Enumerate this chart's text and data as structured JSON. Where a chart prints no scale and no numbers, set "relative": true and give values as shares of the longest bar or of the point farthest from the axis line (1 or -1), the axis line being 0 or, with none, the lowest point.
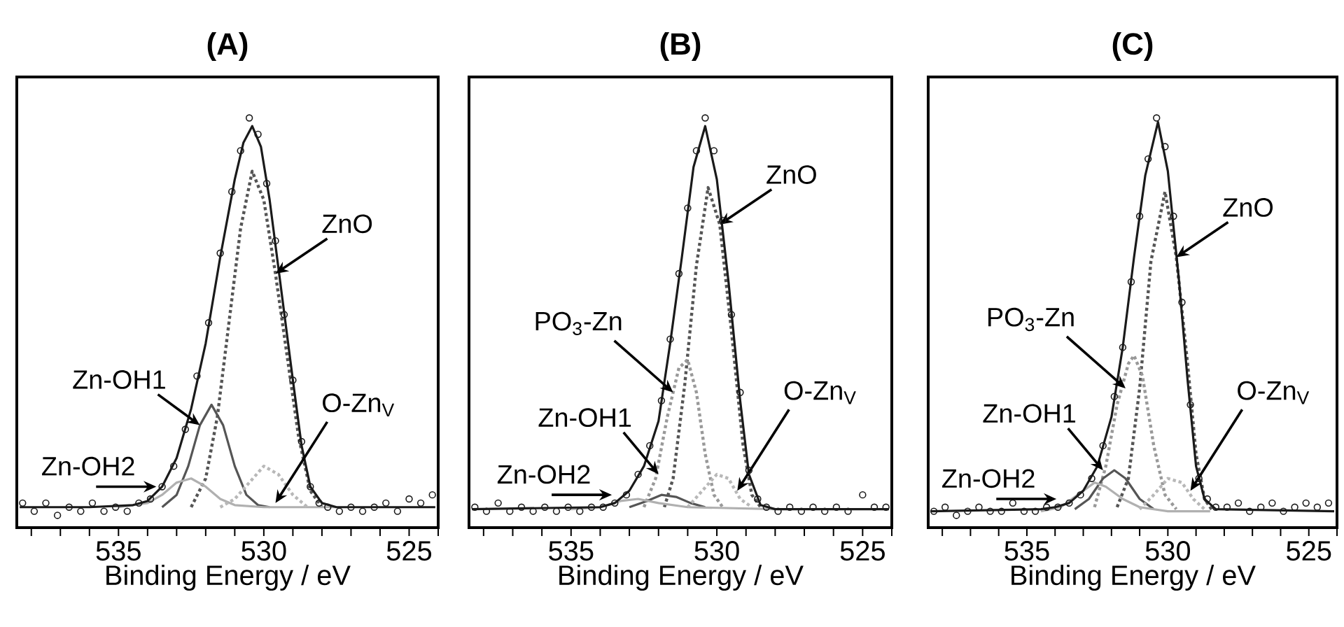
{
  "chart_data": [
    {
      "type": "line",
      "title": "(A)",
      "xlabel": "Binding Energy / eV",
      "relative": true,
      "xlim": [
        538.5,
        524
      ],
      "xticks": [
        {
          "value": 538,
          "label": null
        },
        {
          "value": 537,
          "label": null
        },
        {
          "value": 536,
          "label": null
        },
        535,
        {
          "value": 534,
          "label": null
        },
        {
          "value": 533,
          "label": null
        },
        {
          "value": 532,
          "label": null
        },
        {
          "value": 531,
          "label": null
        },
        530,
        {
          "value": 529,
          "label": null
        },
        {
          "value": 528,
          "label": null
        },
        {
          "value": 527,
          "label": null
        },
        {
          "value": 526,
          "label": null
        },
        525,
        {
          "value": 524,
          "label": null
        }
      ],
      "series": [
        {
          "type": "line",
          "color": "#555555",
          "line_style": "dotted",
          "x": [
            532.5,
            532,
            531.6,
            531.2,
            530.8,
            530.4,
            530,
            529.6,
            529.2,
            528.8,
            528.4,
            528
          ],
          "values": [
            0.05,
            0.12,
            0.27,
            0.5,
            0.73,
            0.87,
            0.8,
            0.62,
            0.42,
            0.22,
            0.09,
            0.05
          ]
        },
        {
          "type": "line",
          "color": "#555555",
          "line_style": "solid",
          "x": [
            533.5,
            533,
            532.6,
            532.2,
            531.8,
            531.4,
            531,
            530.6,
            530.2,
            529.8
          ],
          "values": [
            0.05,
            0.08,
            0.15,
            0.25,
            0.3,
            0.25,
            0.15,
            0.08,
            0.055,
            0.05
          ]
        },
        {
          "type": "line",
          "color": "#b0b0b0",
          "line_style": "solid",
          "x": [
            535,
            534,
            533.5,
            533,
            532.5,
            532,
            531.5,
            531,
            530,
            527.5
          ],
          "values": [
            0.05,
            0.06,
            0.08,
            0.11,
            0.12,
            0.1,
            0.07,
            0.055,
            0.05,
            0.05
          ]
        },
        {
          "type": "line",
          "color": "#b8b8b8",
          "line_style": "dotted",
          "x": [
            531.5,
            531,
            530.5,
            530,
            529.5,
            529,
            528.5
          ],
          "values": [
            0.05,
            0.07,
            0.11,
            0.15,
            0.13,
            0.08,
            0.05
          ]
        },
        {
          "type": "scatter",
          "color": "#1a1a1a",
          "marker": "circle",
          "x": [
            538.3,
            537.9,
            537.5,
            537.1,
            536.7,
            536.3,
            535.9,
            535.5,
            535.1,
            534.7,
            534.3,
            533.9,
            533.5,
            533.1,
            532.7,
            532.3,
            531.9,
            531.5,
            531.1,
            530.8,
            530.5,
            530.2,
            529.9,
            529.6,
            529.3,
            529,
            528.7,
            528.4,
            528.1,
            527.8,
            527.4,
            527,
            526.6,
            526.2,
            525.8,
            525.4,
            525,
            524.6,
            524.2
          ],
          "values": [
            0.06,
            0.04,
            0.06,
            0.03,
            0.05,
            0.04,
            0.06,
            0.04,
            0.05,
            0.04,
            0.06,
            0.07,
            0.1,
            0.15,
            0.24,
            0.37,
            0.5,
            0.67,
            0.82,
            0.92,
            1.0,
            0.96,
            0.84,
            0.7,
            0.52,
            0.36,
            0.21,
            0.1,
            0.06,
            0.05,
            0.04,
            0.05,
            0.04,
            0.05,
            0.06,
            0.04,
            0.07,
            0.06,
            0.08
          ]
        },
        {
          "type": "line",
          "color": "#1a1a1a",
          "line_style": "solid",
          "x": [
            538.4,
            536,
            534.5,
            534,
            533.5,
            533,
            532.5,
            532,
            531.5,
            531,
            530.7,
            530.4,
            530.1,
            529.8,
            529.4,
            529,
            528.7,
            528.4,
            528,
            527.5,
            524.1
          ],
          "values": [
            0.05,
            0.05,
            0.055,
            0.065,
            0.1,
            0.17,
            0.29,
            0.45,
            0.66,
            0.85,
            0.94,
            0.98,
            0.93,
            0.8,
            0.58,
            0.36,
            0.2,
            0.1,
            0.06,
            0.05,
            0.05
          ]
        }
      ],
      "annotations": [
        {
          "text": "ZnO",
          "x": 529.6,
          "y": 0.62
        },
        {
          "text": "Zn-OH1",
          "x": 532.2,
          "y": 0.25
        },
        {
          "text": "Zn-OH2",
          "x": 533.7,
          "y": 0.1
        },
        {
          "text": "O-Zn$_{V}$",
          "x": 529.6,
          "y": 0.06
        }
      ]
    },
    {
      "type": "line",
      "title": "(B)",
      "xlabel": "Binding Energy / eV",
      "relative": true,
      "xlim": [
        538.5,
        524
      ],
      "xticks": [
        {
          "value": 538,
          "label": null
        },
        {
          "value": 537,
          "label": null
        },
        {
          "value": 536,
          "label": null
        },
        535,
        {
          "value": 534,
          "label": null
        },
        {
          "value": 533,
          "label": null
        },
        {
          "value": 532,
          "label": null
        },
        {
          "value": 531,
          "label": null
        },
        530,
        {
          "value": 529,
          "label": null
        },
        {
          "value": 528,
          "label": null
        },
        {
          "value": 527,
          "label": null
        },
        {
          "value": 526,
          "label": null
        },
        525,
        {
          "value": 524,
          "label": null
        }
      ],
      "series": [
        {
          "type": "line",
          "color": "#555555",
          "line_style": "dotted",
          "x": [
            531.8,
            531.5,
            531.1,
            530.7,
            530.3,
            529.9,
            529.5,
            529.1,
            528.8,
            528.5
          ],
          "values": [
            0.05,
            0.12,
            0.35,
            0.64,
            0.83,
            0.74,
            0.48,
            0.2,
            0.08,
            0.05
          ]
        },
        {
          "type": "line",
          "color": "#999999",
          "line_style": "dotted",
          "x": [
            532.5,
            532.1,
            531.7,
            531.3,
            531,
            530.7,
            530.4,
            530.1,
            529.8
          ],
          "values": [
            0.05,
            0.12,
            0.27,
            0.39,
            0.41,
            0.33,
            0.18,
            0.08,
            0.05
          ]
        },
        {
          "type": "line",
          "color": "#555555",
          "line_style": "solid",
          "x": [
            533,
            532.4,
            531.9,
            531.4,
            530.9,
            530.4
          ],
          "values": [
            0.05,
            0.065,
            0.08,
            0.075,
            0.06,
            0.05
          ]
        },
        {
          "type": "line",
          "color": "#b0b0b0",
          "line_style": "solid",
          "x": [
            535,
            534,
            533.3,
            532.7,
            532,
            531,
            528
          ],
          "values": [
            0.045,
            0.05,
            0.065,
            0.07,
            0.06,
            0.05,
            0.045
          ]
        },
        {
          "type": "line",
          "color": "#b8b8b8",
          "line_style": "dotted",
          "x": [
            531,
            530.5,
            530,
            529.6,
            529.2,
            528.8
          ],
          "values": [
            0.05,
            0.09,
            0.13,
            0.12,
            0.07,
            0.05
          ]
        },
        {
          "type": "scatter",
          "color": "#1a1a1a",
          "marker": "circle",
          "x": [
            538.3,
            537.9,
            537.5,
            537.1,
            536.7,
            536.3,
            535.9,
            535.5,
            535.1,
            534.7,
            534.3,
            533.9,
            533.5,
            533.1,
            532.7,
            532.3,
            531.9,
            531.6,
            531.3,
            531,
            530.7,
            530.4,
            530.1,
            529.8,
            529.5,
            529.2,
            528.9,
            528.6,
            528.3,
            527.9,
            527.5,
            527.1,
            526.7,
            526.3,
            525.9,
            525.5,
            525,
            524.6,
            524.2
          ],
          "values": [
            0.05,
            0.04,
            0.06,
            0.04,
            0.05,
            0.04,
            0.05,
            0.04,
            0.05,
            0.04,
            0.05,
            0.05,
            0.06,
            0.08,
            0.13,
            0.2,
            0.31,
            0.46,
            0.62,
            0.78,
            0.92,
            1.0,
            0.92,
            0.75,
            0.52,
            0.33,
            0.14,
            0.07,
            0.05,
            0.04,
            0.05,
            0.04,
            0.05,
            0.04,
            0.05,
            0.04,
            0.08,
            0.05,
            0.05
          ]
        },
        {
          "type": "line",
          "color": "#1a1a1a",
          "line_style": "solid",
          "x": [
            538.4,
            534,
            533.5,
            533,
            532.5,
            532,
            531.6,
            531.2,
            530.8,
            530.4,
            530,
            529.6,
            529.2,
            528.9,
            528.5,
            528,
            524.1
          ],
          "values": [
            0.045,
            0.05,
            0.06,
            0.09,
            0.15,
            0.26,
            0.45,
            0.66,
            0.88,
            0.98,
            0.85,
            0.6,
            0.31,
            0.13,
            0.055,
            0.045,
            0.045
          ]
        }
      ],
      "annotations": [
        {
          "text": "ZnO",
          "x": 529.9,
          "y": 0.74
        },
        {
          "text": "PO$_{3}$-Zn",
          "x": 531.5,
          "y": 0.33
        },
        {
          "text": "Zn-OH1",
          "x": 532,
          "y": 0.13
        },
        {
          "text": "Zn-OH2",
          "x": 533.6,
          "y": 0.08
        },
        {
          "text": "O-Zn$_{V}$",
          "x": 529.3,
          "y": 0.09
        }
      ]
    },
    {
      "type": "line",
      "title": "(C)",
      "xlabel": "Binding Energy / eV",
      "relative": true,
      "xlim": [
        538.5,
        524
      ],
      "xticks": [
        {
          "value": 538,
          "label": null
        },
        {
          "value": 537,
          "label": null
        },
        {
          "value": 536,
          "label": null
        },
        535,
        {
          "value": 534,
          "label": null
        },
        {
          "value": 533,
          "label": null
        },
        {
          "value": 532,
          "label": null
        },
        {
          "value": 531,
          "label": null
        },
        530,
        {
          "value": 529,
          "label": null
        },
        {
          "value": 528,
          "label": null
        },
        {
          "value": 527,
          "label": null
        },
        {
          "value": 526,
          "label": null
        },
        525,
        {
          "value": 524,
          "label": null
        }
      ],
      "series": [
        {
          "type": "line",
          "color": "#555555",
          "line_style": "dotted",
          "x": [
            531.8,
            531.4,
            531,
            530.6,
            530.1,
            529.7,
            529.3,
            529,
            528.7,
            528.4
          ],
          "values": [
            0.05,
            0.12,
            0.34,
            0.65,
            0.82,
            0.66,
            0.4,
            0.18,
            0.07,
            0.04
          ]
        },
        {
          "type": "line",
          "color": "#999999",
          "line_style": "dotted",
          "x": [
            532.6,
            532.2,
            531.8,
            531.4,
            531.2,
            530.9,
            530.5,
            530.1,
            529.7
          ],
          "values": [
            0.05,
            0.15,
            0.3,
            0.4,
            0.42,
            0.37,
            0.2,
            0.08,
            0.045
          ]
        },
        {
          "type": "line",
          "color": "#555555",
          "line_style": "solid",
          "x": [
            533.3,
            532.8,
            532.3,
            531.9,
            531.5,
            531,
            530.5
          ],
          "values": [
            0.045,
            0.07,
            0.12,
            0.14,
            0.12,
            0.07,
            0.045
          ]
        },
        {
          "type": "line",
          "color": "#b0b0b0",
          "line_style": "solid",
          "x": [
            534.5,
            533.8,
            533.2,
            532.6,
            532.2,
            531.6,
            531,
            530,
            528.5
          ],
          "values": [
            0.04,
            0.05,
            0.08,
            0.11,
            0.1,
            0.07,
            0.05,
            0.04,
            0.04
          ]
        },
        {
          "type": "line",
          "color": "#b8b8b8",
          "line_style": "dotted",
          "x": [
            531,
            530.5,
            530,
            529.5,
            529.1,
            528.7
          ],
          "values": [
            0.045,
            0.08,
            0.12,
            0.11,
            0.07,
            0.045
          ]
        },
        {
          "type": "scatter",
          "color": "#1a1a1a",
          "marker": "circle",
          "x": [
            538.3,
            537.9,
            537.5,
            537.1,
            536.7,
            536.3,
            535.9,
            535.5,
            535.1,
            534.7,
            534.3,
            533.9,
            533.5,
            533.1,
            532.7,
            532.3,
            531.9,
            531.6,
            531.3,
            531,
            530.7,
            530.4,
            530.1,
            529.8,
            529.5,
            529.2,
            528.9,
            528.6,
            528.3,
            527.9,
            527.5,
            527.1,
            526.7,
            526.3,
            525.9,
            525.5,
            525.1,
            524.7,
            524.3
          ],
          "values": [
            0.04,
            0.05,
            0.03,
            0.04,
            0.05,
            0.04,
            0.04,
            0.06,
            0.04,
            0.04,
            0.05,
            0.05,
            0.06,
            0.08,
            0.12,
            0.2,
            0.32,
            0.44,
            0.6,
            0.76,
            0.9,
            1.0,
            0.93,
            0.76,
            0.55,
            0.3,
            0.12,
            0.07,
            0.05,
            0.05,
            0.06,
            0.04,
            0.05,
            0.06,
            0.04,
            0.05,
            0.06,
            0.05,
            0.06
          ]
        },
        {
          "type": "line",
          "color": "#1a1a1a",
          "line_style": "solid",
          "x": [
            538.4,
            534.5,
            534,
            533.5,
            533,
            532.5,
            532,
            531.6,
            531.2,
            530.8,
            530.35,
            530,
            529.6,
            529.3,
            529,
            528.7,
            528.3,
            524.1
          ],
          "values": [
            0.04,
            0.045,
            0.05,
            0.06,
            0.09,
            0.15,
            0.27,
            0.44,
            0.66,
            0.86,
            0.99,
            0.87,
            0.6,
            0.36,
            0.15,
            0.07,
            0.045,
            0.04
          ]
        }
      ],
      "annotations": [
        {
          "text": "ZnO",
          "x": 529.7,
          "y": 0.66
        },
        {
          "text": "PO$_{3}$-Zn",
          "x": 531.5,
          "y": 0.34
        },
        {
          "text": "Zn-OH1",
          "x": 532.3,
          "y": 0.14
        },
        {
          "text": "Zn-OH2",
          "x": 533.95,
          "y": 0.07
        },
        {
          "text": "O-Zn$_{V}$",
          "x": 529.2,
          "y": 0.09
        }
      ]
    }
  ]
}
